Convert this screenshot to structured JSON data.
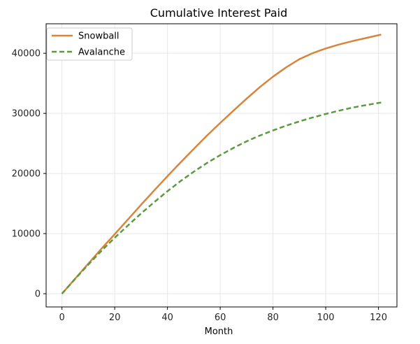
{
  "chart_data": {
    "type": "line",
    "title": "Cumulative Interest Paid",
    "xlabel": "Month",
    "ylabel": "",
    "xlim": [
      -6,
      127
    ],
    "ylim": [
      -2200,
      44900
    ],
    "xticks": [
      0,
      20,
      40,
      60,
      80,
      100,
      120
    ],
    "yticks": [
      0,
      10000,
      20000,
      30000,
      40000
    ],
    "grid": true,
    "legend": "upper left",
    "series": [
      {
        "name": "Snowball",
        "color": "#d9843b",
        "style": "solid",
        "x": [
          0,
          5,
          10,
          15,
          20,
          25,
          30,
          35,
          40,
          45,
          50,
          55,
          60,
          65,
          70,
          75,
          80,
          85,
          90,
          95,
          100,
          105,
          110,
          115,
          121
        ],
        "values": [
          0,
          2500,
          5000,
          7500,
          9900,
          12350,
          14800,
          17200,
          19550,
          21850,
          24100,
          26300,
          28400,
          30450,
          32450,
          34350,
          36100,
          37650,
          39000,
          40000,
          40800,
          41450,
          42000,
          42500,
          43100
        ]
      },
      {
        "name": "Avalanche",
        "color": "#5b9a3f",
        "style": "dashed",
        "x": [
          0,
          5,
          10,
          15,
          20,
          25,
          30,
          35,
          40,
          45,
          50,
          55,
          60,
          65,
          70,
          75,
          80,
          85,
          90,
          95,
          100,
          105,
          110,
          115,
          121
        ],
        "values": [
          0,
          2450,
          4850,
          7150,
          9300,
          11350,
          13350,
          15250,
          17050,
          18750,
          20300,
          21750,
          23050,
          24250,
          25350,
          26300,
          27150,
          27950,
          28650,
          29300,
          29900,
          30450,
          30950,
          31350,
          31800
        ]
      }
    ]
  }
}
